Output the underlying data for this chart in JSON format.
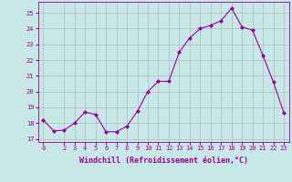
{
  "x": [
    0,
    1,
    2,
    3,
    4,
    5,
    6,
    7,
    8,
    9,
    10,
    11,
    12,
    13,
    14,
    15,
    16,
    17,
    18,
    19,
    20,
    21,
    22,
    23
  ],
  "y": [
    18.2,
    17.5,
    17.55,
    18.0,
    18.7,
    18.55,
    17.45,
    17.45,
    17.8,
    18.75,
    20.0,
    20.65,
    20.65,
    22.5,
    23.4,
    24.0,
    24.2,
    24.5,
    25.3,
    24.1,
    23.9,
    22.3,
    20.6,
    18.65
  ],
  "line_color": "#990099",
  "marker": "D",
  "markersize": 2.0,
  "linewidth": 0.8,
  "bg_color": "#c8e8e8",
  "grid_color": "#aaaaaa",
  "xlabel": "Windchill (Refroidissement éolien,°C)",
  "xlabel_color": "#990099",
  "ylabel_ticks": [
    17,
    18,
    19,
    20,
    21,
    22,
    23,
    24,
    25
  ],
  "xlim": [
    -0.5,
    23.5
  ],
  "ylim": [
    16.8,
    25.7
  ],
  "xticks": [
    0,
    2,
    3,
    4,
    5,
    6,
    7,
    8,
    9,
    10,
    11,
    12,
    13,
    14,
    15,
    16,
    17,
    18,
    19,
    20,
    21,
    22,
    23
  ],
  "tick_color": "#990099",
  "tick_fontsize": 5.0,
  "xlabel_fontsize": 6.0
}
